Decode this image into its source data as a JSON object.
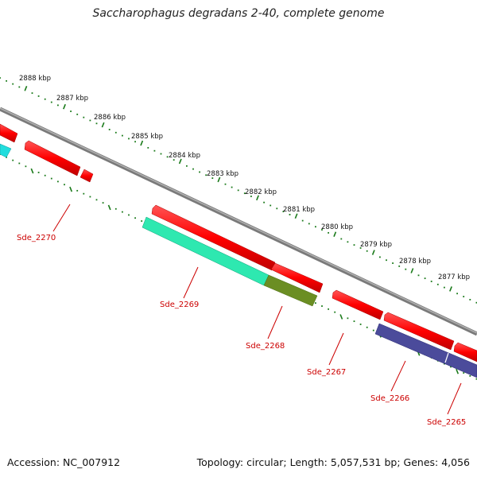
{
  "title": "Saccharophagus degradans 2-40, complete genome",
  "footer": {
    "accession": "Accession: NC_007912",
    "summary": "Topology: circular; Length: 5,057,531 bp; Genes: 4,056"
  },
  "kbp_labels": [
    "2888 kbp",
    "2887 kbp",
    "2886 kbp",
    "2885 kbp",
    "2884 kbp",
    "2883 kbp",
    "2882 kbp",
    "2881 kbp",
    "2880 kbp",
    "2879 kbp",
    "2878 kbp",
    "2877 kbp"
  ],
  "gene_labels": [
    "Sde_2270",
    "Sde_2269",
    "Sde_2268",
    "Sde_2267",
    "Sde_2266",
    "Sde_2265"
  ],
  "colors": {
    "backbone": "#808080",
    "cds": "#ff0000",
    "cds_dark": "#b30000",
    "teal": "#2ee8b0",
    "cyan": "#22dddd",
    "olive": "#6b8e23",
    "navy": "#4b4b9b",
    "ticks": "#1a7a1a",
    "label": "#cc0000"
  }
}
